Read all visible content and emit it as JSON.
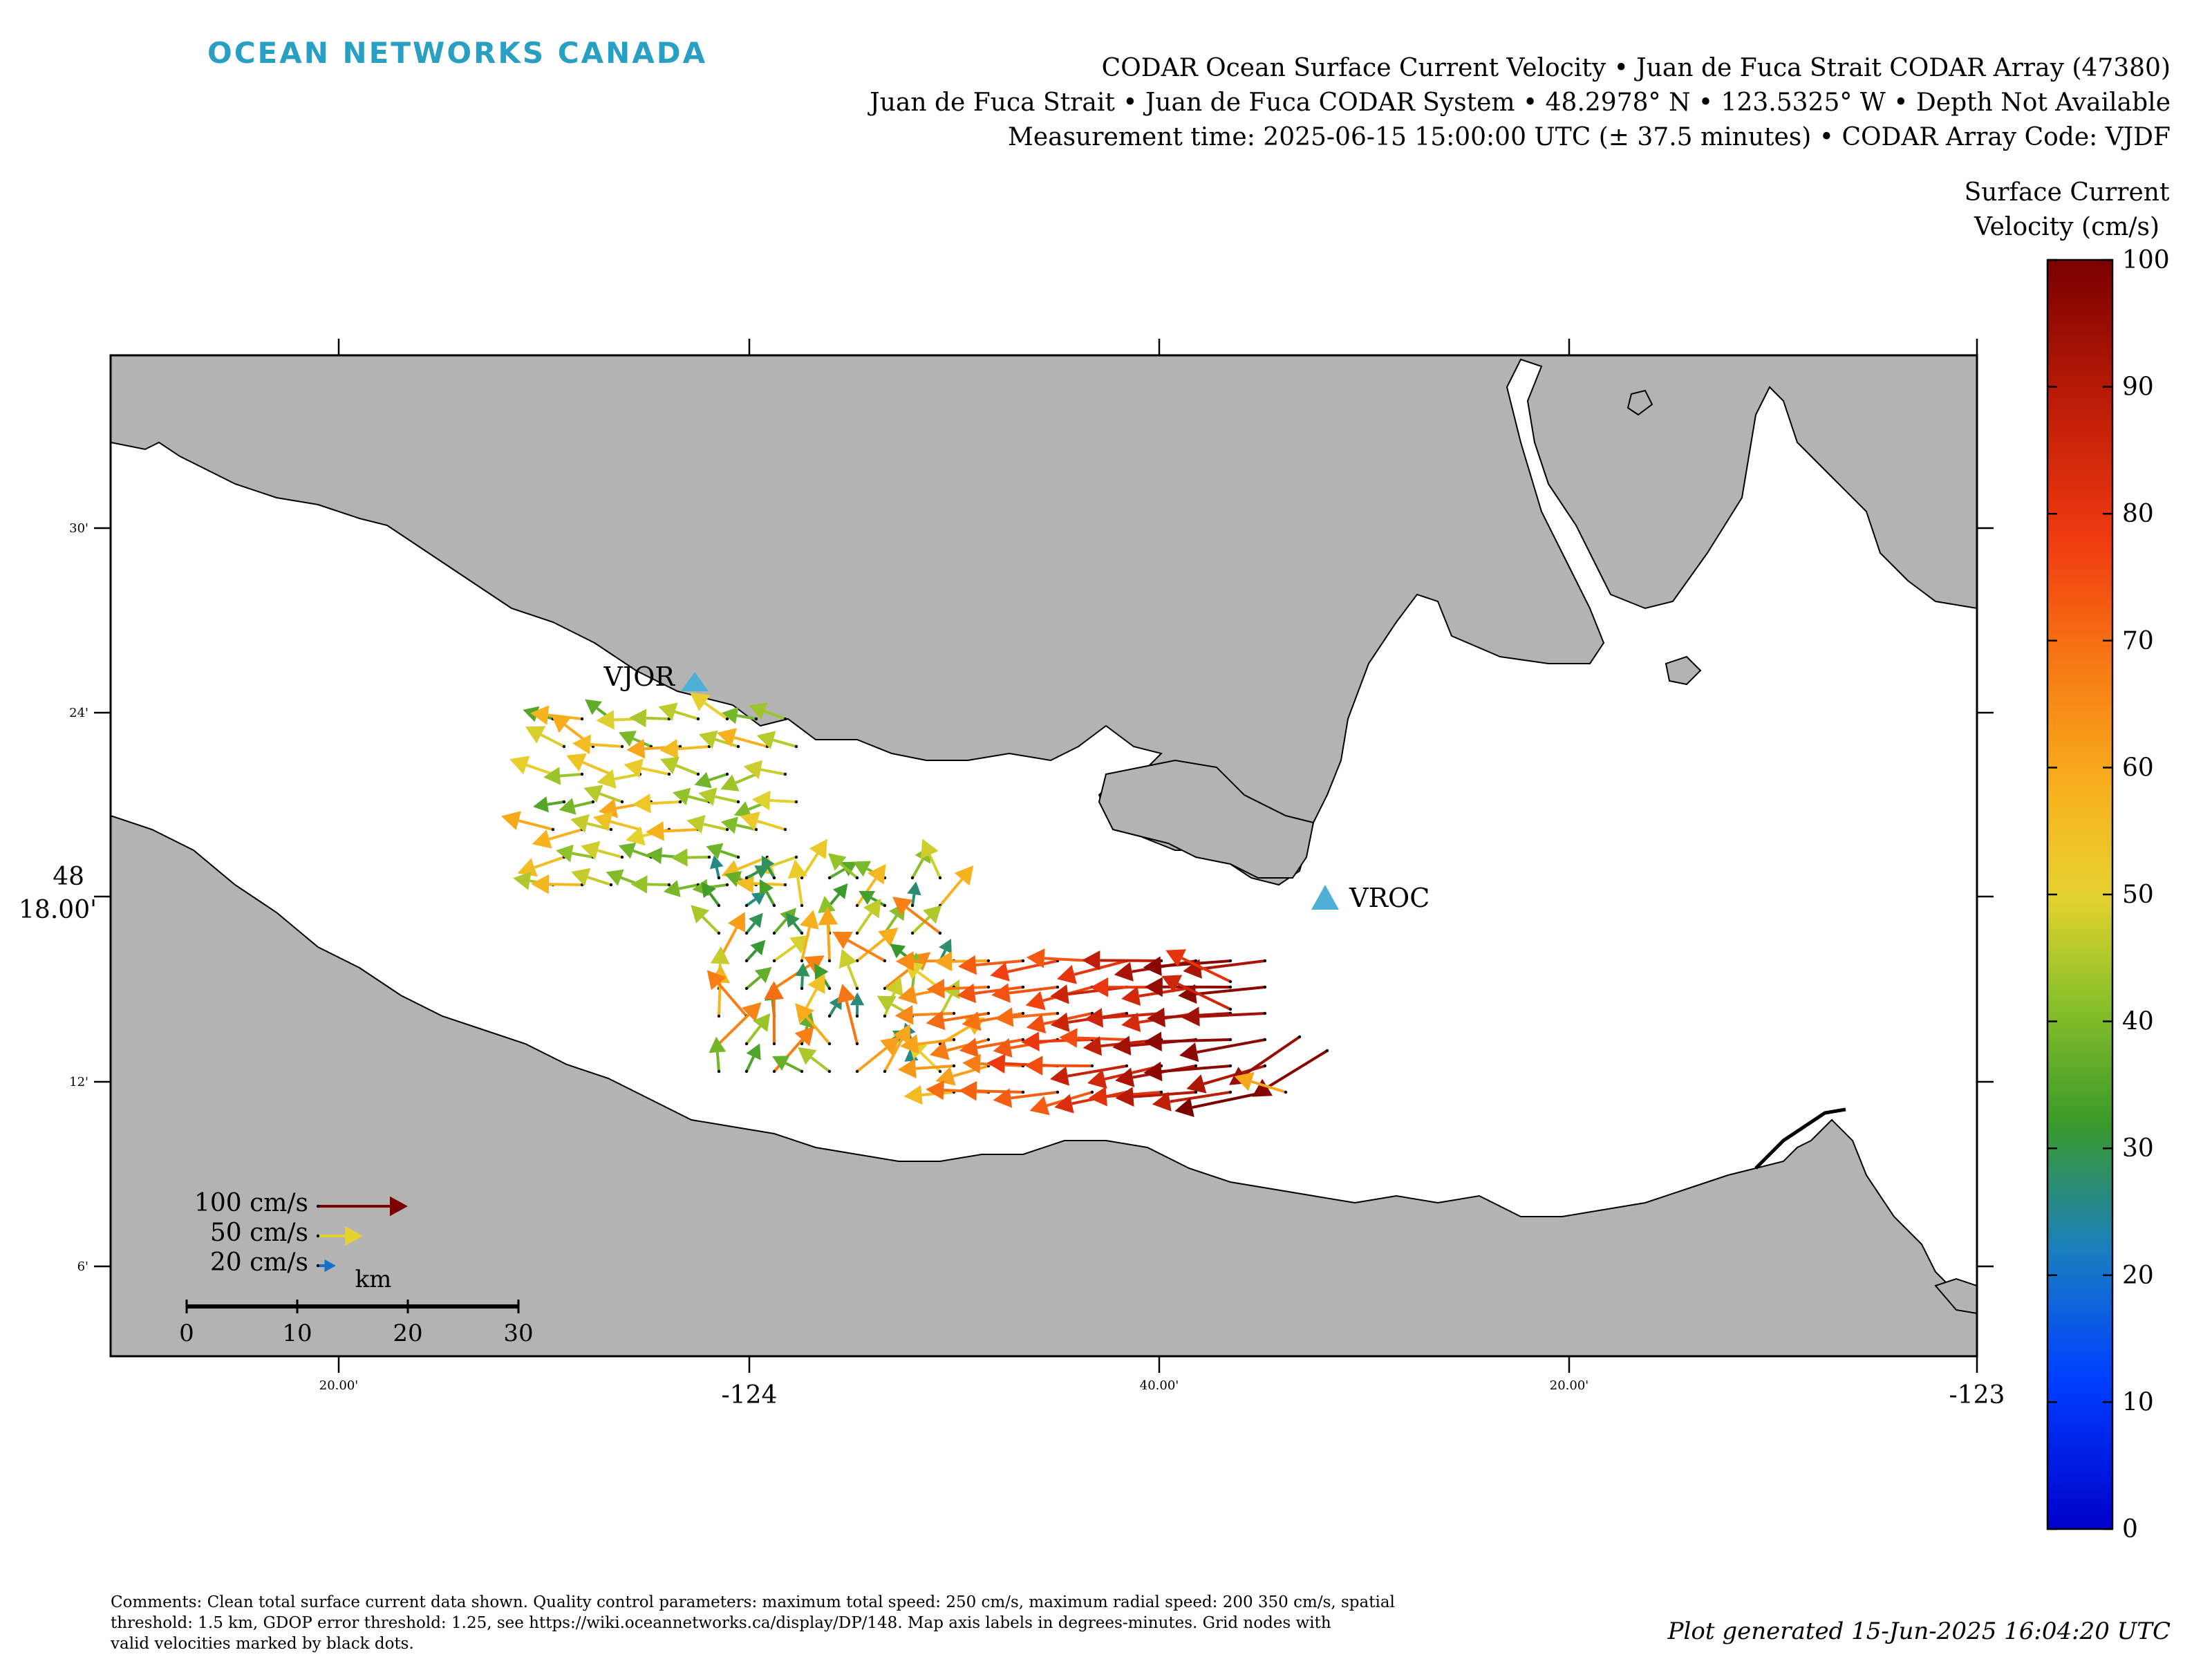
{
  "brand": "OCEAN NETWORKS CANADA",
  "title": {
    "line1": "CODAR Ocean Surface Current Velocity • Juan de Fuca Strait CODAR Array (47380)",
    "line2": "Juan de Fuca Strait • Juan de Fuca CODAR System • 48.2978° N • 123.5325° W • Depth Not Available",
    "line3": "Measurement time: 2025-06-15 15:00:00 UTC (± 37.5 minutes) • CODAR Array Code: VJDF"
  },
  "colorbar": {
    "title_line1": "Surface Current",
    "title_line2": "Velocity (cm/s)",
    "ticks": [
      "0",
      "10",
      "20",
      "30",
      "40",
      "50",
      "60",
      "70",
      "80",
      "90",
      "100"
    ],
    "range": [
      0,
      100
    ],
    "colormap": "jet"
  },
  "map": {
    "land_color": "#b3b3b3",
    "water_color": "#ffffff",
    "x_axis": {
      "labels_small": [
        "20.00'",
        "40.00'",
        "20.00'"
      ],
      "labels_large": [
        "-124",
        "-123"
      ]
    },
    "y_axis": {
      "labels_small": [
        "30'",
        "24'",
        "12'",
        "6'"
      ],
      "label_large_top": "48",
      "label_large_bottom": "18.00'"
    },
    "stations": [
      {
        "name": "VJOR",
        "lon": -124.028,
        "lat": 48.425
      },
      {
        "name": "VROC",
        "lon": -123.59,
        "lat": 48.311
      }
    ],
    "legend": {
      "items": [
        {
          "label": "100 cm/s",
          "speed": 100
        },
        {
          "label": "50 cm/s",
          "speed": 50
        },
        {
          "label": "20 cm/s",
          "speed": 20
        }
      ],
      "scale_unit": "km",
      "scale_ticks": [
        "0",
        "10",
        "20",
        "30"
      ]
    }
  },
  "footer": {
    "line1": "Comments: Clean total surface current data shown. Quality control parameters: maximum total speed: 250 cm/s, maximum radial speed: 200 350 cm/s, spatial",
    "line2": "threshold: 1.5 km, GDOP error threshold: 1.25, see https://wiki.oceannetworks.ca/display/DP/148. Map axis labels in degrees-minutes. Grid nodes with",
    "line3": "valid velocities marked by black dots.",
    "generated": "Plot generated 15-Jun-2025 16:04:20 UTC"
  }
}
